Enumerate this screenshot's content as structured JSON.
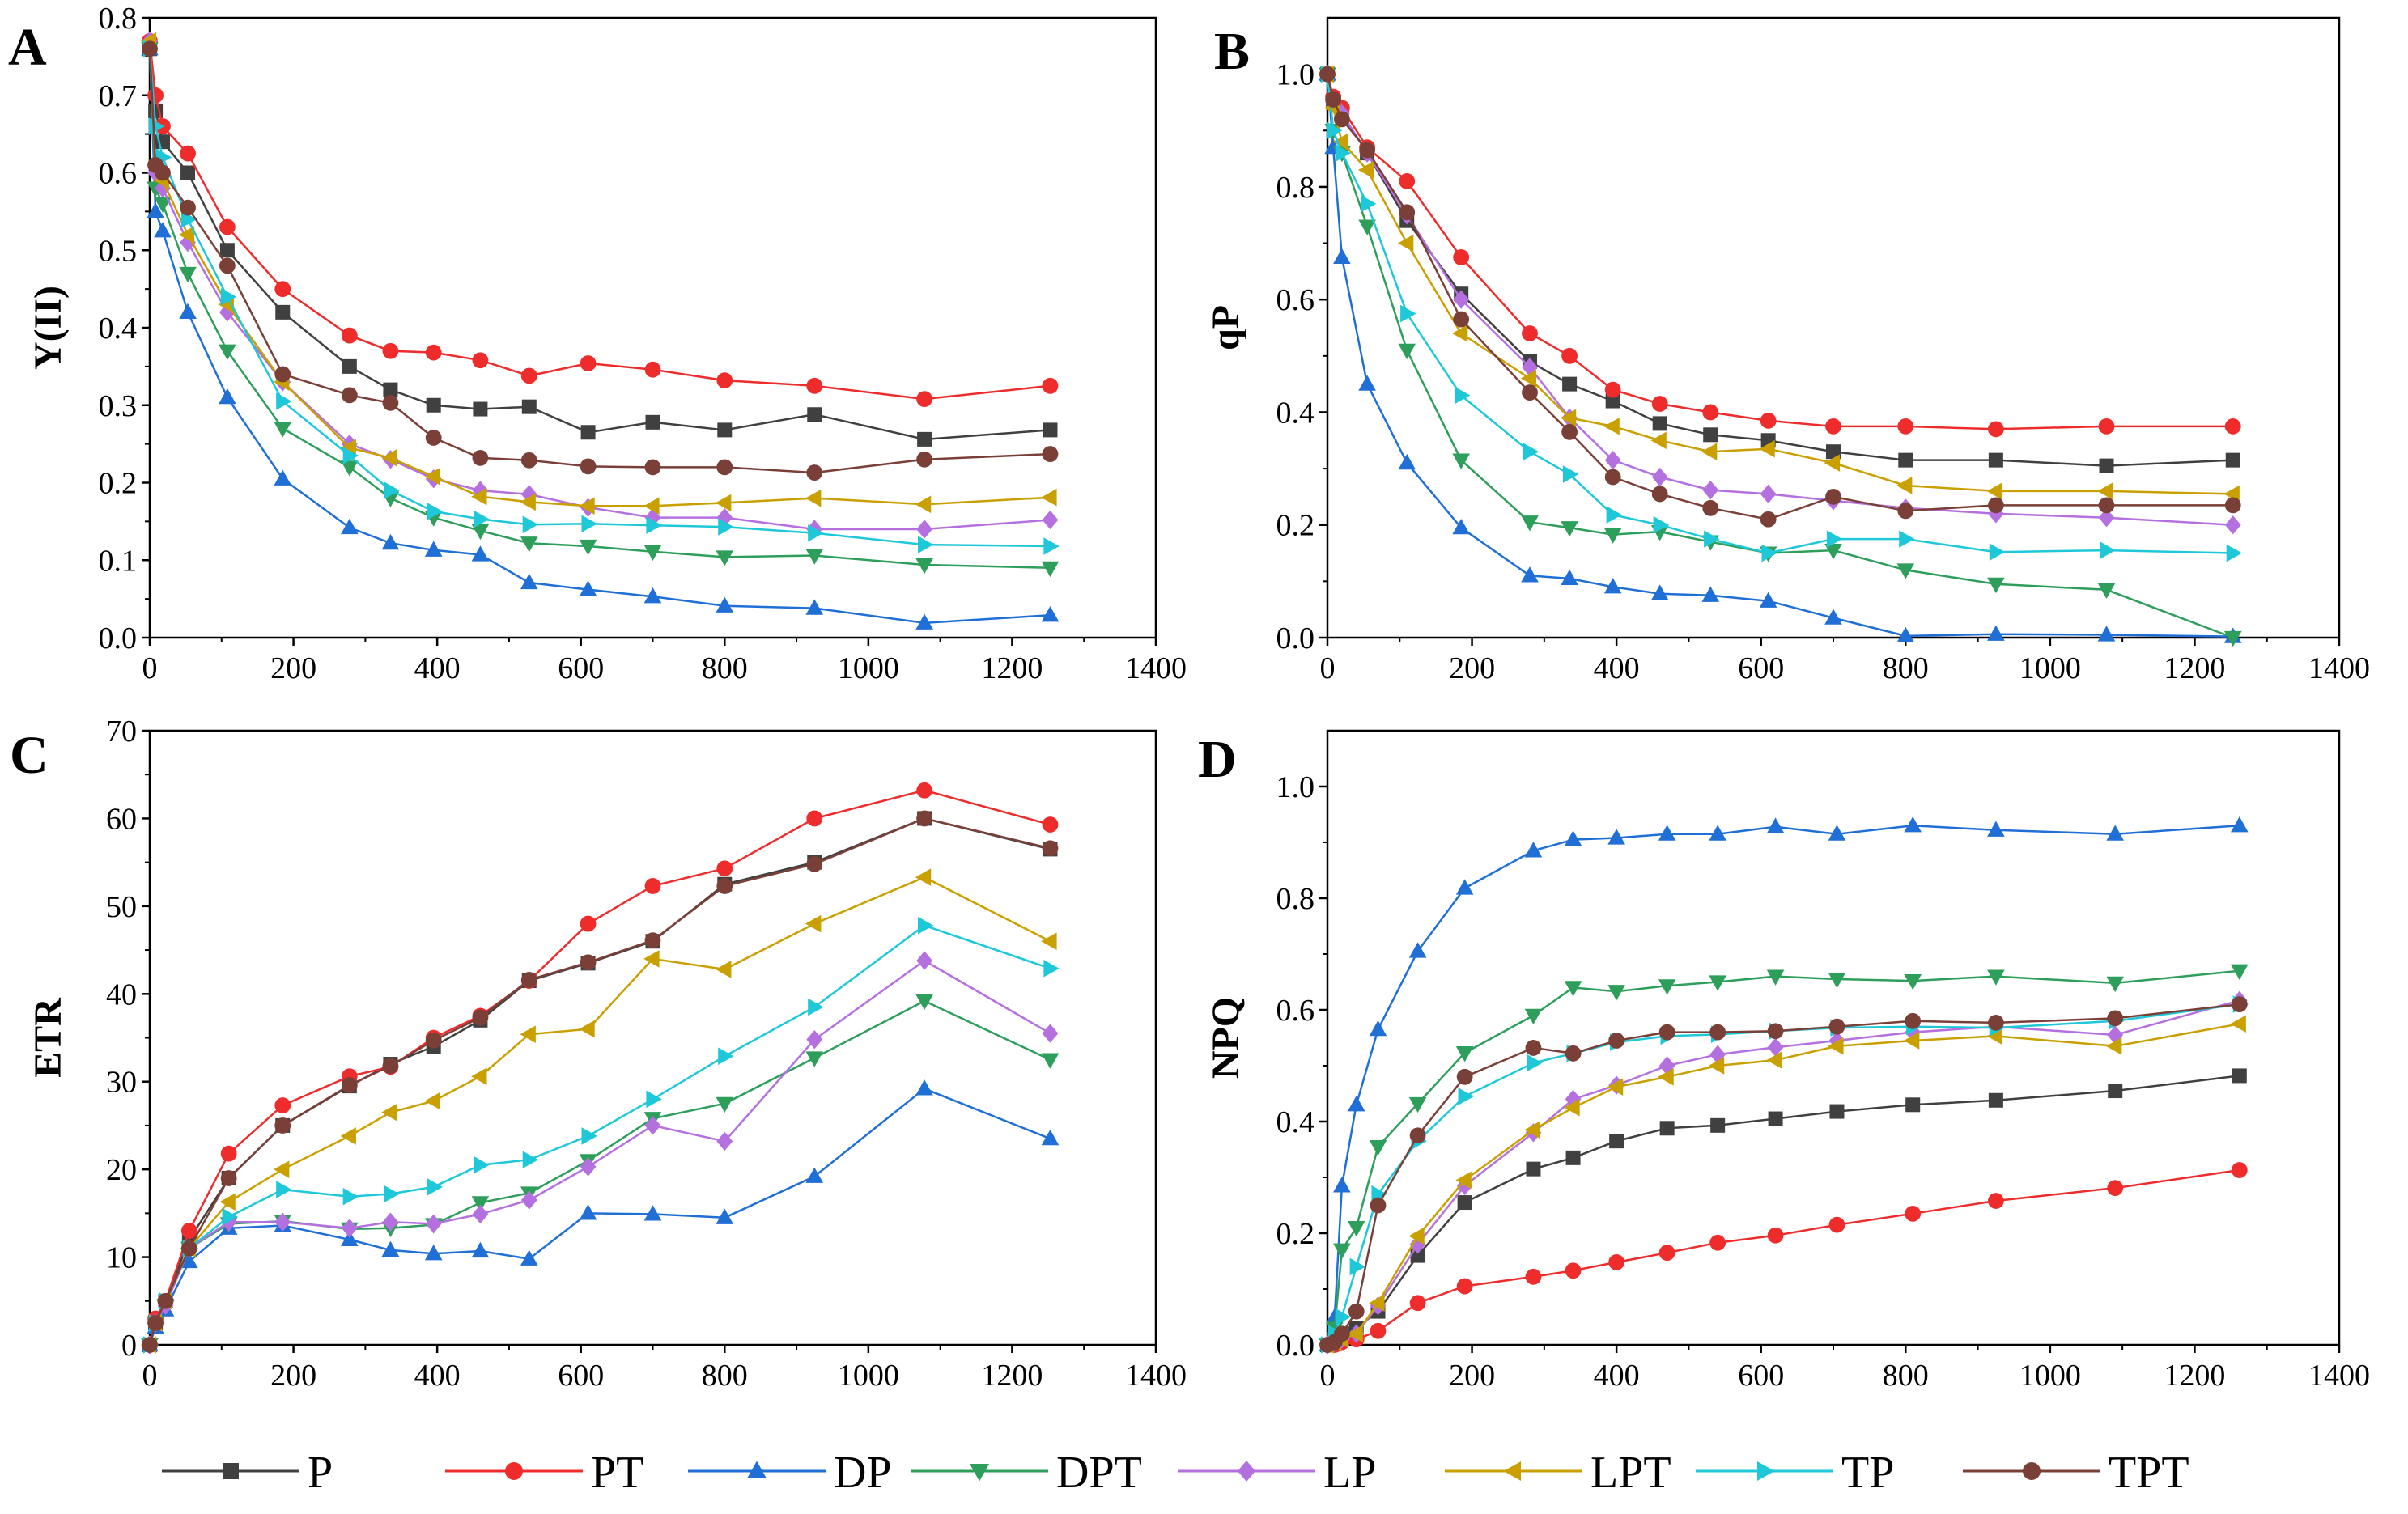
{
  "figure": {
    "legend": [
      {
        "name": "P",
        "color": "#404040",
        "marker": "square"
      },
      {
        "name": "PT",
        "color": "#EE2C2C",
        "marker": "circle"
      },
      {
        "name": "DP",
        "color": "#1F6FD6",
        "marker": "triangle-up"
      },
      {
        "name": "DPT",
        "color": "#2E9E5B",
        "marker": "triangle-down"
      },
      {
        "name": "LP",
        "color": "#B570E0",
        "marker": "diamond"
      },
      {
        "name": "LPT",
        "color": "#C9A000",
        "marker": "triangle-left"
      },
      {
        "name": "TP",
        "color": "#1EC8D8",
        "marker": "triangle-right"
      },
      {
        "name": "TPT",
        "color": "#7A4038",
        "marker": "circle"
      }
    ]
  },
  "chart_data": [
    {
      "panel": "A",
      "type": "line",
      "xlabel": "",
      "ylabel": "Y(II)",
      "xlim": [
        0,
        1400
      ],
      "ylim": [
        0,
        0.8
      ],
      "xticks": [
        0,
        200,
        400,
        600,
        800,
        1000,
        1200,
        1400
      ],
      "yticks": [
        0.0,
        0.1,
        0.2,
        0.3,
        0.4,
        0.5,
        0.6,
        0.7,
        0.8
      ],
      "ytick_labels": [
        "0.0",
        "0.1",
        "0.2",
        "0.3",
        "0.4",
        "0.5",
        "0.6",
        "0.7",
        "0.8"
      ],
      "grid": false,
      "x": [
        0,
        8,
        18,
        53,
        108,
        185,
        278,
        335,
        395,
        460,
        528,
        610,
        700,
        800,
        925,
        1078,
        1253
      ],
      "series": [
        {
          "name": "P",
          "values": [
            0.76,
            0.68,
            0.64,
            0.6,
            0.5,
            0.42,
            0.35,
            0.32,
            0.3,
            0.295,
            0.298,
            0.265,
            0.278,
            0.268,
            0.288,
            0.256,
            0.268
          ]
        },
        {
          "name": "PT",
          "values": [
            0.77,
            0.7,
            0.66,
            0.625,
            0.53,
            0.45,
            0.39,
            0.37,
            0.368,
            0.358,
            0.338,
            0.354,
            0.346,
            0.332,
            0.325,
            0.308,
            0.325
          ]
        },
        {
          "name": "DP",
          "values": [
            0.76,
            0.55,
            0.525,
            0.42,
            0.31,
            0.205,
            0.142,
            0.122,
            0.113,
            0.107,
            0.071,
            0.062,
            0.053,
            0.041,
            0.038,
            0.019,
            0.029
          ]
        },
        {
          "name": "DPT",
          "values": [
            0.76,
            0.58,
            0.56,
            0.47,
            0.37,
            0.27,
            0.22,
            0.18,
            0.155,
            0.138,
            0.122,
            0.118,
            0.111,
            0.104,
            0.106,
            0.094,
            0.09
          ]
        },
        {
          "name": "LP",
          "values": [
            0.77,
            0.6,
            0.58,
            0.51,
            0.42,
            0.33,
            0.25,
            0.23,
            0.205,
            0.19,
            0.185,
            0.168,
            0.155,
            0.155,
            0.14,
            0.14,
            0.152
          ]
        },
        {
          "name": "LPT",
          "values": [
            0.77,
            0.61,
            0.59,
            0.52,
            0.43,
            0.33,
            0.245,
            0.232,
            0.208,
            0.182,
            0.175,
            0.17,
            0.17,
            0.174,
            0.18,
            0.172,
            0.181
          ]
        },
        {
          "name": "TP",
          "values": [
            0.76,
            0.66,
            0.62,
            0.54,
            0.44,
            0.305,
            0.235,
            0.19,
            0.163,
            0.153,
            0.146,
            0.147,
            0.145,
            0.143,
            0.135,
            0.12,
            0.118
          ]
        },
        {
          "name": "TPT",
          "values": [
            0.76,
            0.61,
            0.6,
            0.555,
            0.48,
            0.34,
            0.313,
            0.303,
            0.258,
            0.232,
            0.229,
            0.221,
            0.22,
            0.22,
            0.213,
            0.23,
            0.237
          ]
        }
      ]
    },
    {
      "panel": "B",
      "type": "line",
      "xlabel": "",
      "ylabel": "qP",
      "xlim": [
        0,
        1400
      ],
      "ylim": [
        0,
        1.1
      ],
      "xticks": [
        0,
        200,
        400,
        600,
        800,
        1000,
        1200,
        1400
      ],
      "yticks": [
        0.0,
        0.2,
        0.4,
        0.6,
        0.8,
        1.0
      ],
      "ytick_labels": [
        "0.0",
        "0.2",
        "0.4",
        "0.6",
        "0.8",
        "1.0"
      ],
      "grid": false,
      "x": [
        0,
        8,
        20,
        55,
        110,
        185,
        280,
        335,
        395,
        460,
        530,
        610,
        700,
        800,
        925,
        1078,
        1253
      ],
      "series": [
        {
          "name": "P",
          "values": [
            1.0,
            0.95,
            0.93,
            0.86,
            0.74,
            0.61,
            0.49,
            0.45,
            0.42,
            0.38,
            0.36,
            0.35,
            0.33,
            0.315,
            0.315,
            0.305,
            0.315
          ]
        },
        {
          "name": "PT",
          "values": [
            1.0,
            0.96,
            0.94,
            0.87,
            0.81,
            0.675,
            0.54,
            0.5,
            0.44,
            0.415,
            0.4,
            0.385,
            0.375,
            0.375,
            0.37,
            0.375,
            0.375
          ]
        },
        {
          "name": "DP",
          "values": [
            1.0,
            0.87,
            0.675,
            0.45,
            0.31,
            0.195,
            0.11,
            0.105,
            0.09,
            0.078,
            0.075,
            0.065,
            0.035,
            0.003,
            0.006,
            0.005,
            0.002
          ]
        },
        {
          "name": "DPT",
          "values": [
            1.0,
            0.9,
            0.86,
            0.73,
            0.51,
            0.315,
            0.205,
            0.195,
            0.183,
            0.188,
            0.17,
            0.15,
            0.155,
            0.12,
            0.095,
            0.085,
            0.0
          ]
        },
        {
          "name": "LP",
          "values": [
            1.0,
            0.95,
            0.93,
            0.86,
            0.75,
            0.6,
            0.48,
            0.39,
            0.315,
            0.285,
            0.262,
            0.255,
            0.243,
            0.23,
            0.22,
            0.213,
            0.2
          ]
        },
        {
          "name": "LPT",
          "values": [
            1.0,
            0.94,
            0.88,
            0.83,
            0.7,
            0.54,
            0.46,
            0.39,
            0.375,
            0.35,
            0.33,
            0.335,
            0.31,
            0.27,
            0.26,
            0.26,
            0.255
          ]
        },
        {
          "name": "TP",
          "values": [
            1.0,
            0.9,
            0.86,
            0.77,
            0.575,
            0.43,
            0.33,
            0.29,
            0.218,
            0.2,
            0.175,
            0.15,
            0.175,
            0.175,
            0.152,
            0.155,
            0.15
          ]
        },
        {
          "name": "TPT",
          "values": [
            1.0,
            0.955,
            0.92,
            0.865,
            0.755,
            0.565,
            0.435,
            0.365,
            0.285,
            0.255,
            0.23,
            0.21,
            0.25,
            0.225,
            0.235,
            0.235,
            0.235
          ]
        }
      ]
    },
    {
      "panel": "C",
      "type": "line",
      "xlabel": "",
      "ylabel": "ETR",
      "xlim": [
        0,
        1400
      ],
      "ylim": [
        0,
        70
      ],
      "xticks": [
        0,
        200,
        400,
        600,
        800,
        1000,
        1200,
        1400
      ],
      "yticks": [
        0,
        10,
        20,
        30,
        40,
        50,
        60,
        70
      ],
      "ytick_labels": [
        "0",
        "10",
        "20",
        "30",
        "40",
        "50",
        "60",
        "70"
      ],
      "grid": false,
      "x": [
        0,
        8,
        22,
        55,
        110,
        185,
        278,
        335,
        395,
        460,
        528,
        610,
        700,
        800,
        925,
        1078,
        1253
      ],
      "series": [
        {
          "name": "P",
          "values": [
            0,
            2.5,
            5,
            12,
            19,
            25,
            29.5,
            32,
            34,
            37,
            41.5,
            43.5,
            46,
            52.5,
            55,
            60,
            56.5
          ]
        },
        {
          "name": "PT",
          "values": [
            0,
            3,
            5,
            13,
            21.8,
            27.3,
            30.6,
            31.7,
            35,
            37.5,
            41.5,
            48,
            52.3,
            54.3,
            60,
            63.2,
            59.3
          ]
        },
        {
          "name": "DP",
          "values": [
            0,
            2,
            4,
            9.5,
            13.3,
            13.6,
            12,
            10.8,
            10.4,
            10.7,
            9.8,
            15,
            14.9,
            14.5,
            19.2,
            29.2,
            23.5
          ]
        },
        {
          "name": "DPT",
          "values": [
            0,
            2.5,
            4.5,
            11,
            13.8,
            14.1,
            13.2,
            13.3,
            13.7,
            16.2,
            17.3,
            21,
            25.8,
            27.5,
            32.7,
            39.2,
            32.5
          ]
        },
        {
          "name": "LP",
          "values": [
            0,
            2.5,
            4.5,
            11,
            14,
            14,
            13.3,
            14,
            13.8,
            14.9,
            16.5,
            20.3,
            25,
            23.2,
            34.8,
            43.8,
            35.5
          ]
        },
        {
          "name": "LPT",
          "values": [
            0,
            2.5,
            5,
            11,
            16.3,
            20,
            23.8,
            26.5,
            27.8,
            30.6,
            35.4,
            36,
            44,
            42.8,
            48,
            53.3,
            46
          ]
        },
        {
          "name": "TP",
          "values": [
            0,
            2.5,
            5,
            11,
            14.6,
            17.7,
            16.9,
            17.2,
            18,
            20.5,
            21.1,
            23.8,
            28,
            32.9,
            38.5,
            47.8,
            42.9
          ]
        },
        {
          "name": "TPT",
          "values": [
            0,
            2.5,
            5,
            11,
            19,
            25,
            29.6,
            31.8,
            34.7,
            37.3,
            41.6,
            43.6,
            46.1,
            52.3,
            54.8,
            60,
            56.6
          ]
        }
      ]
    },
    {
      "panel": "D",
      "type": "line",
      "xlabel": "",
      "ylabel": "NPQ",
      "xlim": [
        0,
        1400
      ],
      "ylim": [
        0,
        1.1
      ],
      "xticks": [
        0,
        200,
        400,
        600,
        800,
        1000,
        1200,
        1400
      ],
      "yticks": [
        0.0,
        0.2,
        0.4,
        0.6,
        0.8,
        1.0
      ],
      "ytick_labels": [
        "0.0",
        "0.2",
        "0.4",
        "0.6",
        "0.8",
        "1.0"
      ],
      "grid": false,
      "x": [
        0,
        10,
        20,
        40,
        70,
        125,
        190,
        285,
        340,
        400,
        470,
        540,
        620,
        705,
        810,
        925,
        1090,
        1262
      ],
      "series": [
        {
          "name": "P",
          "values": [
            0,
            0.01,
            0.02,
            0.03,
            0.06,
            0.16,
            0.255,
            0.315,
            0.335,
            0.365,
            0.388,
            0.393,
            0.405,
            0.418,
            0.43,
            0.438,
            0.455,
            0.482
          ]
        },
        {
          "name": "PT",
          "values": [
            0,
            0.0,
            0.005,
            0.01,
            0.025,
            0.075,
            0.105,
            0.122,
            0.133,
            0.148,
            0.165,
            0.183,
            0.196,
            0.215,
            0.235,
            0.258,
            0.281,
            0.313
          ]
        },
        {
          "name": "DP",
          "values": [
            0,
            0.05,
            0.285,
            0.43,
            0.565,
            0.705,
            0.818,
            0.885,
            0.905,
            0.908,
            0.915,
            0.915,
            0.928,
            0.915,
            0.93,
            0.922,
            0.915,
            0.93
          ]
        },
        {
          "name": "DPT",
          "values": [
            0,
            0.03,
            0.17,
            0.21,
            0.355,
            0.432,
            0.523,
            0.59,
            0.64,
            0.633,
            0.643,
            0.65,
            0.66,
            0.655,
            0.652,
            0.66,
            0.648,
            0.67
          ]
        },
        {
          "name": "LP",
          "values": [
            0,
            0.005,
            0.01,
            0.02,
            0.07,
            0.18,
            0.285,
            0.38,
            0.44,
            0.465,
            0.5,
            0.52,
            0.533,
            0.545,
            0.56,
            0.57,
            0.555,
            0.617
          ]
        },
        {
          "name": "LPT",
          "values": [
            0,
            0.005,
            0.01,
            0.02,
            0.075,
            0.195,
            0.295,
            0.385,
            0.425,
            0.462,
            0.48,
            0.5,
            0.51,
            0.535,
            0.545,
            0.553,
            0.535,
            0.575
          ]
        },
        {
          "name": "TP",
          "values": [
            0,
            0.02,
            0.05,
            0.14,
            0.27,
            0.365,
            0.445,
            0.505,
            0.522,
            0.542,
            0.553,
            0.556,
            0.562,
            0.568,
            0.57,
            0.568,
            0.58,
            0.61
          ]
        },
        {
          "name": "TPT",
          "values": [
            0,
            0.005,
            0.02,
            0.06,
            0.25,
            0.375,
            0.48,
            0.532,
            0.522,
            0.545,
            0.56,
            0.56,
            0.562,
            0.57,
            0.58,
            0.577,
            0.585,
            0.61
          ]
        }
      ]
    }
  ]
}
